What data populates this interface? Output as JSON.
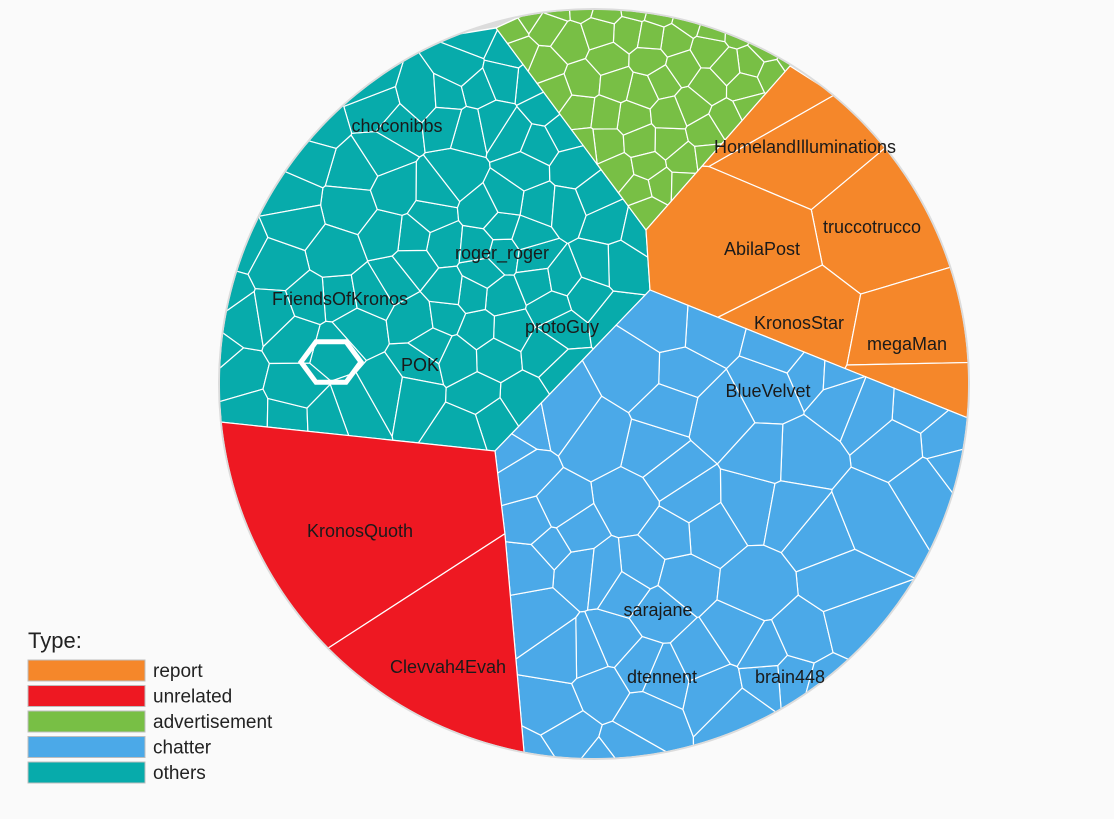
{
  "chart_data": {
    "type": "voronoi-treemap",
    "legend_title": "Type:",
    "legend_position": "bottom-left",
    "categories": [
      {
        "name": "report",
        "color": "#f5872a"
      },
      {
        "name": "unrelated",
        "color": "#ee1822"
      },
      {
        "name": "advertisement",
        "color": "#78bf45"
      },
      {
        "name": "chatter",
        "color": "#4ba9e8"
      },
      {
        "name": "others",
        "color": "#07abab"
      }
    ],
    "labeled_users": [
      {
        "name": "choconibbs",
        "type": "others"
      },
      {
        "name": "roger_roger",
        "type": "others"
      },
      {
        "name": "FriendsOfKronos",
        "type": "others"
      },
      {
        "name": "protoGuy",
        "type": "others"
      },
      {
        "name": "POK",
        "type": "others"
      },
      {
        "name": "HomelandIlluminations",
        "type": "report"
      },
      {
        "name": "truccotrucco",
        "type": "report"
      },
      {
        "name": "AbilaPost",
        "type": "report"
      },
      {
        "name": "KronosStar",
        "type": "report"
      },
      {
        "name": "megaMan",
        "type": "report"
      },
      {
        "name": "BlueVelvet",
        "type": "chatter"
      },
      {
        "name": "sarajane",
        "type": "chatter"
      },
      {
        "name": "dtennent",
        "type": "chatter"
      },
      {
        "name": "brain448",
        "type": "chatter"
      },
      {
        "name": "KronosQuoth",
        "type": "unrelated"
      },
      {
        "name": "Clevvah4Evah",
        "type": "unrelated"
      }
    ]
  }
}
